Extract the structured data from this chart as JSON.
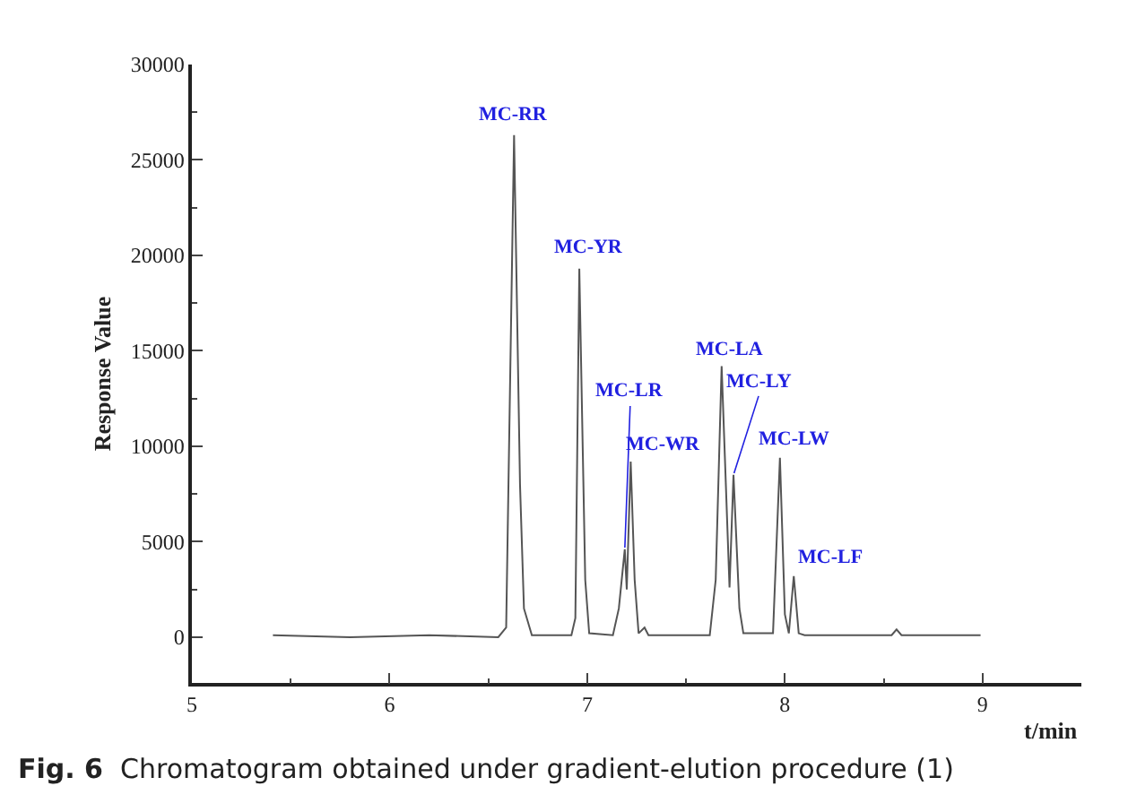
{
  "chart_data": {
    "type": "line",
    "xlabel": "t/min",
    "ylabel": "Response Value",
    "x": [
      5.41,
      5.8,
      6.2,
      6.55,
      6.59,
      6.63,
      6.66,
      6.68,
      6.72,
      6.92,
      6.94,
      6.96,
      6.99,
      7.01,
      7.13,
      7.16,
      7.19,
      7.2,
      7.22,
      7.24,
      7.26,
      7.29,
      7.31,
      7.62,
      7.65,
      7.68,
      7.72,
      7.74,
      7.77,
      7.79,
      7.94,
      7.975,
      8.0,
      8.02,
      8.045,
      8.07,
      8.1,
      8.54,
      8.565,
      8.59,
      8.99
    ],
    "series": [
      {
        "color": "#555555",
        "values": [
          100,
          0,
          100,
          0,
          500,
          26300,
          8000,
          1500,
          100,
          100,
          1000,
          19300,
          3000,
          200,
          100,
          1500,
          4600,
          2500,
          9200,
          3000,
          200,
          500,
          100,
          100,
          3000,
          14200,
          2600,
          8500,
          1500,
          200,
          200,
          9400,
          1200,
          200,
          3200,
          200,
          100,
          100,
          400,
          100,
          100
        ]
      }
    ],
    "xlim": [
      5,
      9.5
    ],
    "xticks": [
      5,
      6,
      7,
      8,
      9
    ],
    "ylim": [
      -2400,
      30000
    ],
    "yticks": [
      0,
      5000,
      10000,
      15000,
      20000,
      25000,
      30000
    ],
    "marker": "none",
    "line_style": "solid",
    "annotations": [
      {
        "text": "MC-RR",
        "x": 6.63,
        "y": 26300
      },
      {
        "text": "MC-YR",
        "x": 6.96,
        "y": 19300
      },
      {
        "text": "MC-LR",
        "x": 7.19,
        "y": 4600
      },
      {
        "text": "MC-WR",
        "x": 7.22,
        "y": 9200
      },
      {
        "text": "MC-LA",
        "x": 7.68,
        "y": 14200
      },
      {
        "text": "MC-LY",
        "x": 7.74,
        "y": 8500
      },
      {
        "text": "MC-LW",
        "x": 7.975,
        "y": 9400
      },
      {
        "text": "MC-LF",
        "x": 8.045,
        "y": 3200
      },
      "Fig. 6  Chromatogram obtained under gradient-elution procedure (1)"
    ]
  }
}
